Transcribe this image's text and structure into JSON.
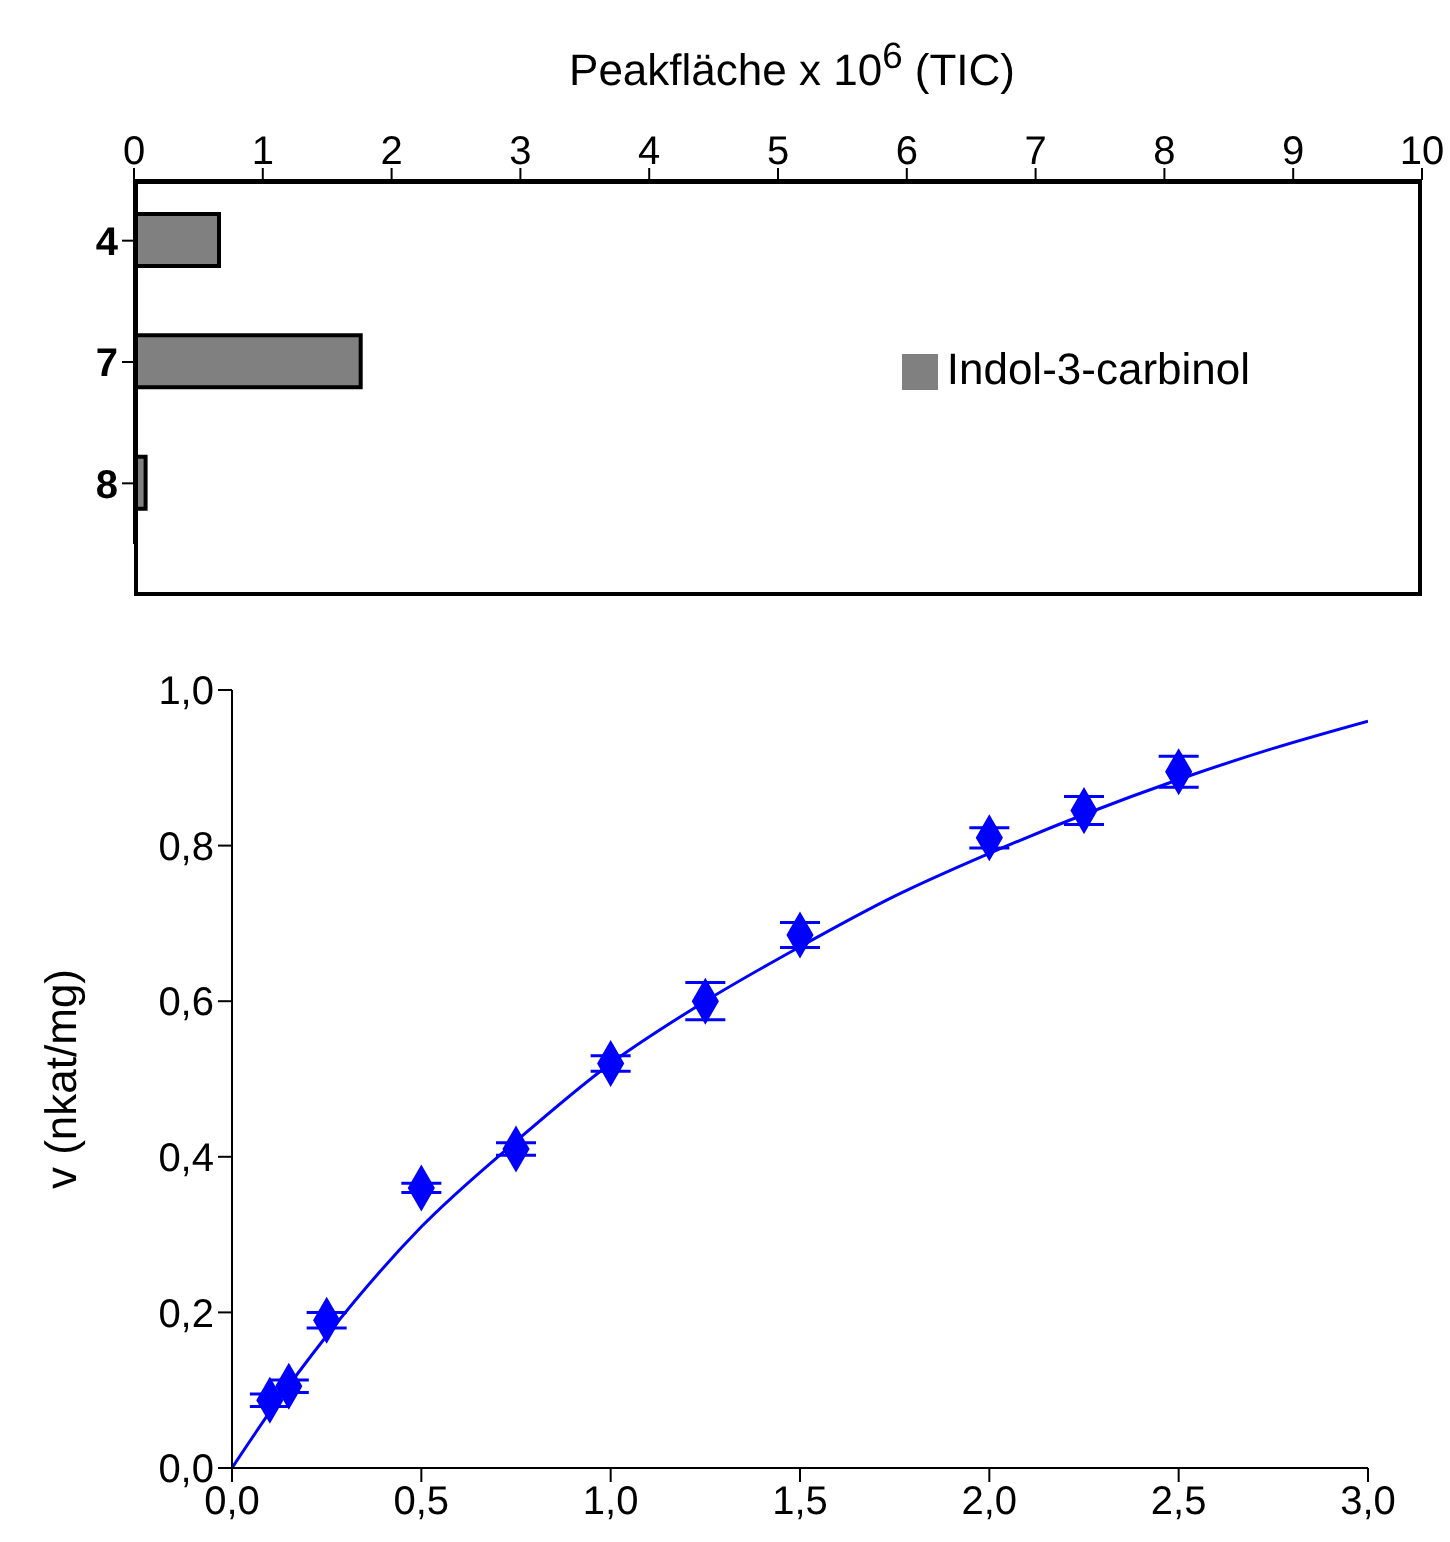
{
  "chart_data": [
    {
      "type": "bar",
      "orientation": "horizontal",
      "xlabel": "Peakfläche x 10$^{6}$ (TIC)",
      "categories": [
        "4",
        "7",
        "8"
      ],
      "series": [
        {
          "name": "Indol-3-carbinol",
          "color": "#808080",
          "values": [
            0.66,
            1.76,
            0.09
          ]
        }
      ],
      "xlim": [
        0,
        10
      ],
      "xticks": [
        0,
        1,
        2,
        3,
        4,
        5,
        6,
        7,
        8,
        9,
        10
      ],
      "legend": "right",
      "grid": false
    },
    {
      "type": "scatter",
      "ylabel": "v (nkat/mg)",
      "marker": "diamond",
      "grid": false,
      "series": [
        {
          "color": "#0000ff",
          "x": [
            0.1,
            0.15,
            0.25,
            0.5,
            0.75,
            1.0,
            1.25,
            1.5,
            2.0,
            2.25,
            2.5
          ],
          "values": [
            0.087,
            0.105,
            0.19,
            0.36,
            0.41,
            0.52,
            0.6,
            0.685,
            0.81,
            0.845,
            0.895
          ],
          "errors": [
            0.008,
            0.008,
            0.01,
            0.006,
            0.008,
            0.01,
            0.024,
            0.016,
            0.013,
            0.018,
            0.02
          ]
        },
        {
          "type": "line",
          "color": "#0000ff",
          "marker": "none",
          "x": [
            0,
            0.1,
            0.25,
            0.5,
            0.75,
            1.0,
            1.25,
            1.5,
            1.75,
            2.0,
            2.25,
            2.5,
            2.75,
            3.0
          ],
          "values": [
            0,
            0.072,
            0.17,
            0.31,
            0.42,
            0.52,
            0.6,
            0.67,
            0.735,
            0.79,
            0.84,
            0.885,
            0.925,
            0.96
          ]
        }
      ],
      "xlim": [
        0,
        3
      ],
      "xticks": [
        {
          "value": 0,
          "label": "0,0"
        },
        {
          "value": 0.5,
          "label": "0,5"
        },
        {
          "value": 1,
          "label": "1,0"
        },
        {
          "value": 1.5,
          "label": "1,5"
        },
        {
          "value": 2,
          "label": "2,0"
        },
        {
          "value": 2.5,
          "label": "2,5"
        },
        {
          "value": 3,
          "label": "3,0"
        }
      ],
      "ylim": [
        0,
        1
      ],
      "yticks": [
        {
          "value": 0,
          "label": "0,0"
        },
        {
          "value": 0.2,
          "label": "0,2"
        },
        {
          "value": 0.4,
          "label": "0,4"
        },
        {
          "value": 0.6,
          "label": "0,6"
        },
        {
          "value": 0.8,
          "label": "0,8"
        },
        {
          "value": 1,
          "label": "1,0"
        }
      ]
    }
  ]
}
